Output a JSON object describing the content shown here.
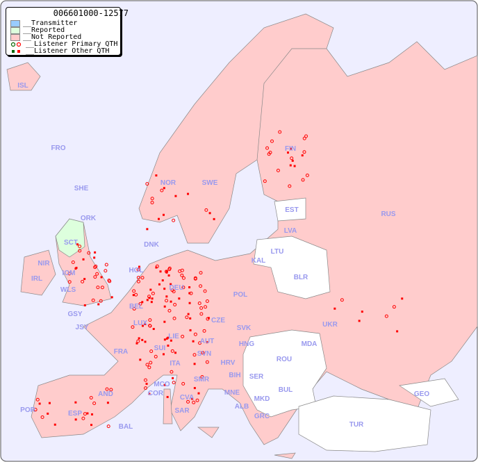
{
  "legend": {
    "title": "006601000-12577",
    "items": [
      {
        "label": "__Transmitter",
        "color": "#99ccff"
      },
      {
        "label": "__Reported",
        "color": "#ddffdd"
      },
      {
        "label": "__Not Reported",
        "color": "#ffcccc"
      },
      {
        "label": "__Listener Primary QTH",
        "color": "#ff0000"
      },
      {
        "label": "__Listener Other QTH",
        "color": "#ff0000"
      }
    ]
  },
  "colors": {
    "sea": "#eeeeff",
    "not_reported": "#ffcccc",
    "reported": "#ddffdd",
    "no_data": "#ffffff",
    "label": "#9999ee",
    "marker": "#ff0000"
  },
  "countries": [
    "ISL",
    "FRO",
    "SHE",
    "ORK",
    "NOR",
    "SWE",
    "FIN",
    "EST",
    "LVA",
    "RUS",
    "LTU",
    "KAL",
    "BLR",
    "DNK",
    "SCT",
    "NIR",
    "IOM",
    "IRL",
    "WLS",
    "HOL",
    "DEU",
    "POL",
    "BEL",
    "LUX",
    "GSY",
    "JSY",
    "FRA",
    "SUI",
    "LIE",
    "AUT",
    "CZE",
    "SVK",
    "HNG",
    "UKR",
    "MDA",
    "ROU",
    "SVN",
    "HRV",
    "BIH",
    "SER",
    "BUL",
    "MNE",
    "ALB",
    "MKD",
    "GRC",
    "TUR",
    "GEO",
    "ITA",
    "SMR",
    "MCO",
    "COR",
    "CVA",
    "SAR",
    "AND",
    "ESP",
    "POR",
    "BAL"
  ]
}
